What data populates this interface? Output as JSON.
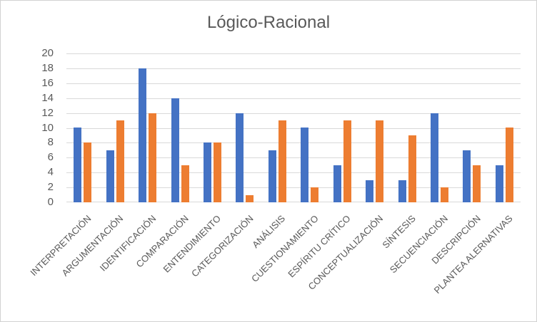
{
  "chart_title": "Lógico-Racional",
  "colors": {
    "series_blue": "#4472C4",
    "series_orange": "#ED7D31",
    "gridline": "#D9D9D9",
    "axis_text": "#595959",
    "title_text": "#595959",
    "chart_border": "#D2D2D2",
    "background": "#FFFFFF"
  },
  "chart_data": {
    "type": "bar",
    "title": "Lógico-Racional",
    "categories": [
      "INTERPRETACIÓN",
      "ARGUMENTACIÓN",
      "IDENTIFICACIÓN",
      "COMPARACIÓN",
      "ENTENDIMIENTO",
      "CATEGORIZACIÓN",
      "ANÁLISIS",
      "CUESTIONAMIENTO",
      "ESPÍRITU CRÍTICO",
      "CONCEPTUALIZACIÓN",
      "SÍNTESIS",
      "SECUENCIACIÓN",
      "DESCRIPCIÓN",
      "PLANTEA ALERNATIVAS"
    ],
    "series": [
      {
        "color": "#4472C4",
        "values": [
          10,
          7,
          18,
          14,
          8,
          12,
          7,
          10,
          5,
          3,
          3,
          12,
          7,
          5
        ]
      },
      {
        "color": "#ED7D31",
        "values": [
          8,
          11,
          12,
          5,
          8,
          1,
          11,
          2,
          11,
          11,
          9,
          2,
          5,
          10
        ]
      }
    ],
    "xlabel": "",
    "ylabel": "",
    "ylim": [
      0,
      20
    ],
    "yticks": [
      0,
      2,
      4,
      6,
      8,
      10,
      12,
      14,
      16,
      18,
      20
    ],
    "grid": true,
    "legend": "none"
  }
}
